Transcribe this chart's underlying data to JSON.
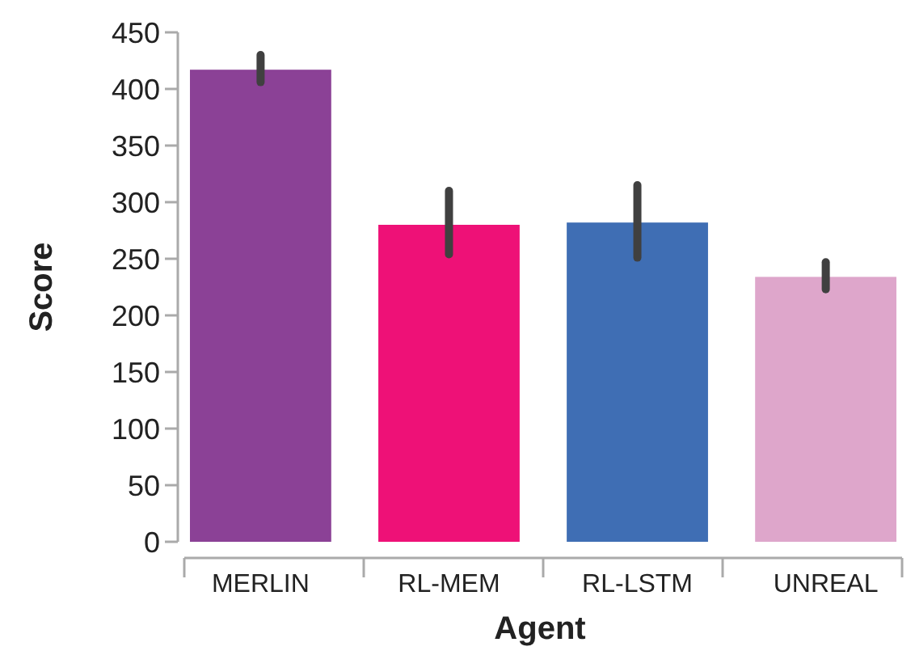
{
  "chart_data": {
    "type": "bar",
    "xlabel": "Agent",
    "ylabel": "Score",
    "categories": [
      "MERLIN",
      "RL-MEM",
      "RL-LSTM",
      "UNREAL"
    ],
    "values": [
      417,
      280,
      282,
      234
    ],
    "colors": [
      "#8b4196",
      "#ee1177",
      "#3f6eb4",
      "#dea6cb"
    ],
    "errors": [
      [
        406,
        430
      ],
      [
        254,
        310
      ],
      [
        251,
        315
      ],
      [
        223,
        247
      ]
    ],
    "ylim": [
      0,
      450
    ],
    "yticks": [
      0,
      50,
      100,
      150,
      200,
      250,
      300,
      350,
      400,
      450
    ],
    "grid": false
  }
}
